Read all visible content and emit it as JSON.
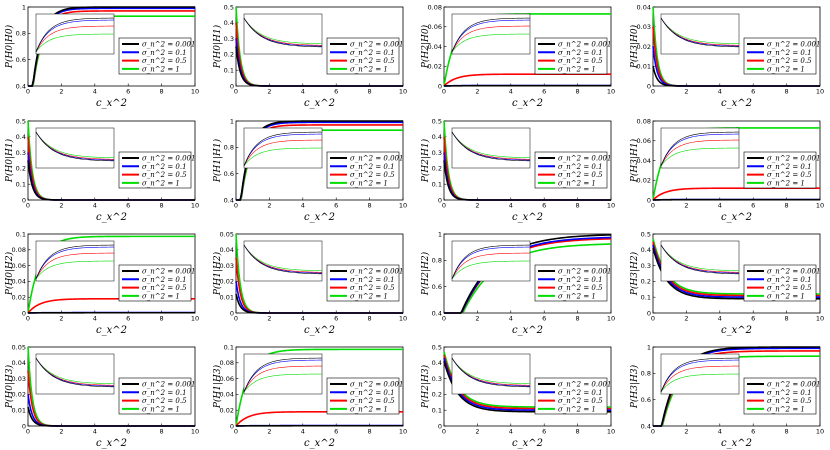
{
  "figure": {
    "rows": 4,
    "cols": 4,
    "xlabel": "c_x^2"
  },
  "legend_entries": [
    "σ_n^2 = 0.001",
    "σ_n^2 = 0.1",
    "σ_n^2 = 0.5",
    "σ_n^2 = 1"
  ],
  "series_colors": [
    "#000000",
    "#0000ff",
    "#ff0000",
    "#00dd00"
  ],
  "chart_data": [
    {
      "id": "p00",
      "type": "line",
      "ylabel": "P(H0|H0)",
      "xlabel": "c_x^2",
      "xlim": [
        0,
        10
      ],
      "ylim": [
        0.4,
        1
      ],
      "xticks": [
        "0",
        "2",
        "4",
        "6",
        "8",
        "10"
      ],
      "yticks": [
        "0.4",
        "0.6",
        "0.8",
        "1"
      ],
      "kind": "sat",
      "finals": [
        1.0,
        0.99,
        0.97,
        0.93
      ],
      "rate": 18,
      "inset": true,
      "inset_kind": "sat"
    },
    {
      "id": "p01",
      "type": "line",
      "ylabel": "P(H0|H1)",
      "xlabel": "c_x^2",
      "xlim": [
        0,
        10
      ],
      "ylim": [
        0,
        0.5
      ],
      "xticks": [
        "0",
        "2",
        "4",
        "6",
        "8",
        "10"
      ],
      "yticks": [
        "0",
        "0.1",
        "0.2",
        "0.3",
        "0.4",
        "0.5"
      ],
      "kind": "dec",
      "starts": [
        0.25,
        0.3,
        0.4,
        0.5
      ],
      "finals": [
        0,
        0,
        0,
        0
      ],
      "rate": 4,
      "inset": true,
      "inset_kind": "dec"
    },
    {
      "id": "p02",
      "type": "line",
      "ylabel": "P(H2|H0)",
      "xlabel": "c_x^2",
      "xlim": [
        0,
        10
      ],
      "ylim": [
        0,
        0.08
      ],
      "xticks": [
        "0",
        "2",
        "4",
        "6",
        "8",
        "10"
      ],
      "yticks": [
        "0",
        "0.02",
        "0.04",
        "0.06",
        "0.08"
      ],
      "kind": "sat",
      "finals": [
        0.0003,
        0.0005,
        0.012,
        0.073
      ],
      "rate": 14,
      "inset": true,
      "inset_kind": "sat"
    },
    {
      "id": "p03",
      "type": "line",
      "ylabel": "P(H3|H0)",
      "xlabel": "c_x^2",
      "xlim": [
        0,
        10
      ],
      "ylim": [
        0,
        0.04
      ],
      "xticks": [
        "0",
        "2",
        "4",
        "6",
        "8",
        "10"
      ],
      "yticks": [
        "0",
        "0.01",
        "0.02",
        "0.03",
        "0.04"
      ],
      "kind": "dec",
      "starts": [
        0.01,
        0.02,
        0.03,
        0.04
      ],
      "finals": [
        0,
        0,
        0,
        0
      ],
      "rate": 4,
      "inset": true,
      "inset_kind": "dec"
    },
    {
      "id": "p10",
      "type": "line",
      "ylabel": "P(H0|H1)",
      "xlabel": "c_x^2",
      "xlim": [
        0,
        10
      ],
      "ylim": [
        0,
        0.5
      ],
      "xticks": [
        "0",
        "2",
        "4",
        "6",
        "8",
        "10"
      ],
      "yticks": [
        "0",
        "0.1",
        "0.2",
        "0.3",
        "0.4",
        "0.5"
      ],
      "kind": "dec",
      "starts": [
        0.25,
        0.3,
        0.4,
        0.5
      ],
      "finals": [
        0,
        0,
        0,
        0
      ],
      "rate": 4,
      "inset": true,
      "inset_kind": "dec"
    },
    {
      "id": "p11",
      "type": "line",
      "ylabel": "P(H1|H1)",
      "xlabel": "c_x^2",
      "xlim": [
        0,
        10
      ],
      "ylim": [
        0.4,
        1
      ],
      "xticks": [
        "0",
        "2",
        "4",
        "6",
        "8",
        "10"
      ],
      "yticks": [
        "0.4",
        "0.6",
        "0.8",
        "1"
      ],
      "kind": "sat",
      "finals": [
        1.0,
        0.99,
        0.97,
        0.93
      ],
      "rate": 18,
      "inset": true,
      "inset_kind": "sat"
    },
    {
      "id": "p12",
      "type": "line",
      "ylabel": "P(H2|H1)",
      "xlabel": "c_x^2",
      "xlim": [
        0,
        10
      ],
      "ylim": [
        0,
        0.5
      ],
      "xticks": [
        "0",
        "2",
        "4",
        "6",
        "8",
        "10"
      ],
      "yticks": [
        "0",
        "0.1",
        "0.2",
        "0.3",
        "0.4",
        "0.5"
      ],
      "kind": "dec",
      "starts": [
        0.25,
        0.3,
        0.4,
        0.5
      ],
      "finals": [
        0,
        0,
        0,
        0
      ],
      "rate": 4,
      "inset": true,
      "inset_kind": "dec"
    },
    {
      "id": "p13",
      "type": "line",
      "ylabel": "P(H3|H1)",
      "xlabel": "c_x^2",
      "xlim": [
        0,
        10
      ],
      "ylim": [
        0,
        0.08
      ],
      "xticks": [
        "0",
        "2",
        "4",
        "6",
        "8",
        "10"
      ],
      "yticks": [
        "0",
        "0.02",
        "0.04",
        "0.06",
        "0.08"
      ],
      "kind": "sat",
      "finals": [
        0.0003,
        0.0005,
        0.012,
        0.073
      ],
      "rate": 14,
      "inset": true,
      "inset_kind": "sat"
    },
    {
      "id": "p20",
      "type": "line",
      "ylabel": "P(H0|H2)",
      "xlabel": "c_x^2",
      "xlim": [
        0,
        10
      ],
      "ylim": [
        0,
        0.1
      ],
      "xticks": [
        "0",
        "2",
        "4",
        "6",
        "8",
        "10"
      ],
      "yticks": [
        "0",
        "0.02",
        "0.04",
        "0.06",
        "0.08",
        "0.1"
      ],
      "kind": "sat",
      "finals": [
        0.0003,
        0.0005,
        0.018,
        0.097
      ],
      "rate": 14,
      "inset": true,
      "inset_kind": "sat"
    },
    {
      "id": "p21",
      "type": "line",
      "ylabel": "P(H1|H2)",
      "xlabel": "c_x^2",
      "xlim": [
        0,
        10
      ],
      "ylim": [
        0,
        0.05
      ],
      "xticks": [
        "0",
        "2",
        "4",
        "6",
        "8",
        "10"
      ],
      "yticks": [
        "0",
        "0.01",
        "0.02",
        "0.03",
        "0.04",
        "0.05"
      ],
      "kind": "dec",
      "starts": [
        0.012,
        0.02,
        0.035,
        0.05
      ],
      "finals": [
        0,
        0,
        0,
        0
      ],
      "rate": 4,
      "inset": true,
      "inset_kind": "dec"
    },
    {
      "id": "p22",
      "type": "line",
      "ylabel": "P(H2|H2)",
      "xlabel": "c_x^2",
      "xlim": [
        0,
        10
      ],
      "ylim": [
        0.4,
        1
      ],
      "xticks": [
        "0",
        "2",
        "4",
        "6",
        "8",
        "10"
      ],
      "yticks": [
        "0.4",
        "0.6",
        "0.8",
        "1"
      ],
      "kind": "sat",
      "finals": [
        1.0,
        0.98,
        0.97,
        0.93
      ],
      "rate": 5,
      "inset": true,
      "inset_kind": "sat"
    },
    {
      "id": "p23",
      "type": "line",
      "ylabel": "P(H3|H2)",
      "xlabel": "c_x^2",
      "xlim": [
        0,
        10
      ],
      "ylim": [
        0,
        0.5
      ],
      "xticks": [
        "0",
        "2",
        "4",
        "6",
        "8",
        "10"
      ],
      "yticks": [
        "0",
        "0.1",
        "0.2",
        "0.3",
        "0.4",
        "0.5"
      ],
      "kind": "dec",
      "starts": [
        0.41,
        0.43,
        0.45,
        0.47
      ],
      "finals": [
        0.09,
        0.1,
        0.11,
        0.12
      ],
      "rate": 1.2,
      "inset": true,
      "inset_kind": "dec"
    },
    {
      "id": "p30",
      "type": "line",
      "ylabel": "P(H0|H3)",
      "xlabel": "c_x^2",
      "xlim": [
        0,
        10
      ],
      "ylim": [
        0,
        0.05
      ],
      "xticks": [
        "0",
        "2",
        "4",
        "6",
        "8",
        "10"
      ],
      "yticks": [
        "0",
        "0.01",
        "0.02",
        "0.03",
        "0.04",
        "0.05"
      ],
      "kind": "dec",
      "starts": [
        0.012,
        0.02,
        0.035,
        0.05
      ],
      "finals": [
        0,
        0,
        0,
        0
      ],
      "rate": 4,
      "inset": true,
      "inset_kind": "dec"
    },
    {
      "id": "p31",
      "type": "line",
      "ylabel": "P(H1|H3)",
      "xlabel": "c_x^2",
      "xlim": [
        0,
        10
      ],
      "ylim": [
        0,
        0.1
      ],
      "xticks": [
        "0",
        "2",
        "4",
        "6",
        "8",
        "10"
      ],
      "yticks": [
        "0",
        "0.02",
        "0.04",
        "0.06",
        "0.08",
        "0.1"
      ],
      "kind": "sat",
      "finals": [
        0.0003,
        0.0005,
        0.018,
        0.097
      ],
      "rate": 14,
      "inset": true,
      "inset_kind": "sat"
    },
    {
      "id": "p32",
      "type": "line",
      "ylabel": "P(H2|H3)",
      "xlabel": "c_x^2",
      "xlim": [
        0,
        10
      ],
      "ylim": [
        0,
        0.5
      ],
      "xticks": [
        "0",
        "2",
        "4",
        "6",
        "8",
        "10"
      ],
      "yticks": [
        "0",
        "0.1",
        "0.2",
        "0.3",
        "0.4",
        "0.5"
      ],
      "kind": "dec",
      "starts": [
        0.41,
        0.43,
        0.45,
        0.47
      ],
      "finals": [
        0.09,
        0.1,
        0.11,
        0.12
      ],
      "rate": 1.2,
      "inset": true,
      "inset_kind": "dec"
    },
    {
      "id": "p33",
      "type": "line",
      "ylabel": "P(H3|H3)",
      "xlabel": "c_x^2",
      "xlim": [
        0,
        10
      ],
      "ylim": [
        0.4,
        1
      ],
      "xticks": [
        "0",
        "2",
        "4",
        "6",
        "8",
        "10"
      ],
      "yticks": [
        "0.4",
        "0.6",
        "0.8",
        "1"
      ],
      "kind": "sat",
      "finals": [
        1.0,
        0.99,
        0.97,
        0.93
      ],
      "rate": 10,
      "inset": true,
      "inset_kind": "sat"
    }
  ]
}
